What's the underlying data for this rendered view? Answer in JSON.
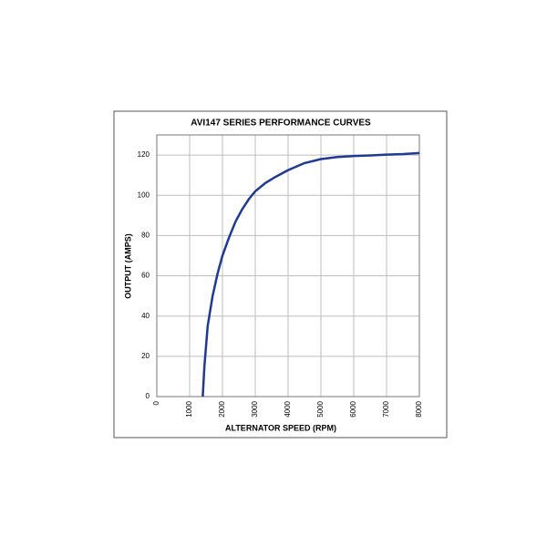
{
  "chart_data": {
    "type": "line",
    "title": "AVI147 SERIES PERFORMANCE CURVES",
    "x_label": "ALTERNATOR SPEED (RPM)",
    "y_label": "OUTPUT (AMPS)",
    "x": [
      1400,
      1450,
      1550,
      1700,
      1850,
      2000,
      2200,
      2400,
      2600,
      2800,
      3000,
      3300,
      3600,
      4000,
      4500,
      5000,
      5500,
      6000,
      6500,
      7000,
      7500,
      8000
    ],
    "series": [
      {
        "name": "Output",
        "color": "#1f3a93",
        "values": [
          0,
          15,
          35,
          50,
          61,
          70,
          79,
          87,
          93,
          98,
          102,
          106,
          109,
          112.5,
          116,
          118,
          119,
          119.5,
          119.8,
          120.2,
          120.5,
          121
        ]
      }
    ],
    "xlim": [
      0,
      8000
    ],
    "xticks": [
      0,
      1000,
      2000,
      3000,
      4000,
      5000,
      6000,
      7000,
      8000
    ],
    "ylim": [
      0,
      130
    ],
    "yticks": [
      0,
      20,
      40,
      60,
      80,
      100,
      120
    ],
    "grid": true
  }
}
